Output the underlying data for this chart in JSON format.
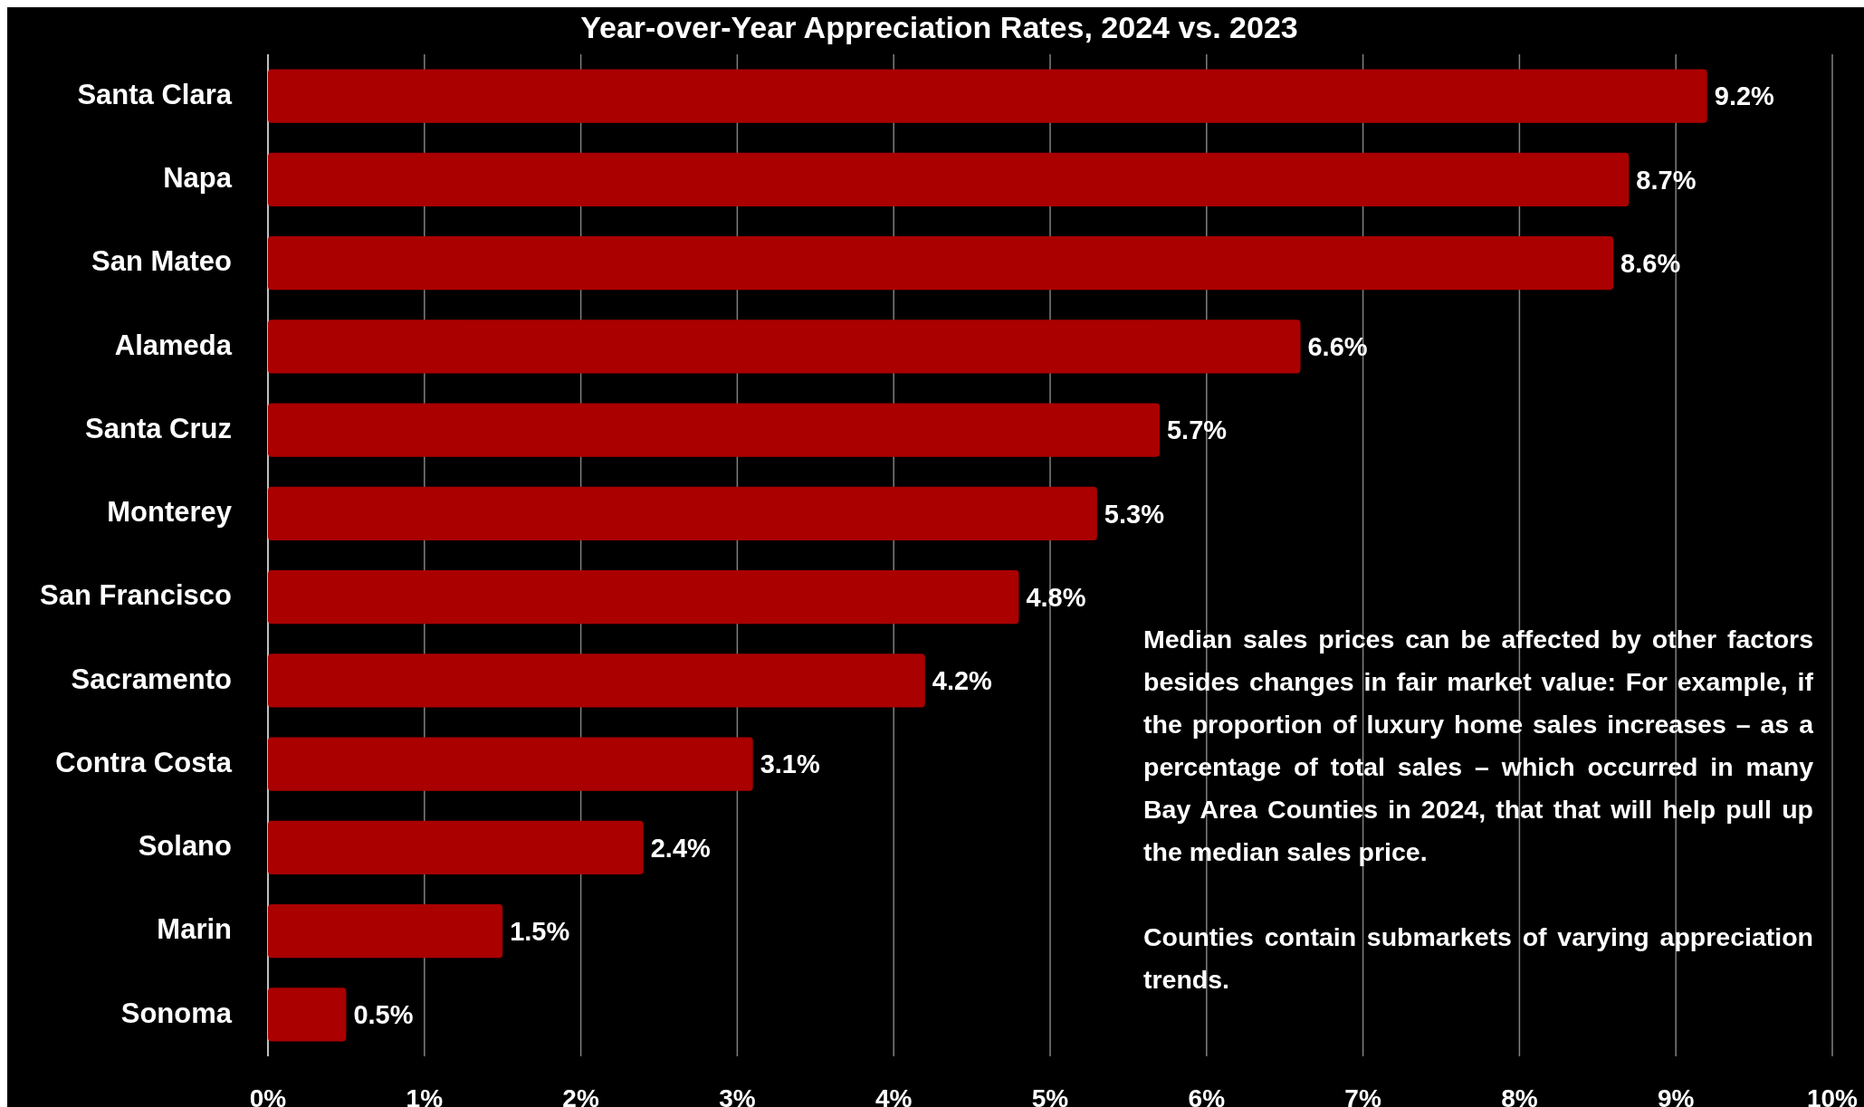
{
  "chart_data": {
    "type": "bar",
    "orientation": "horizontal",
    "title": "Year-over-Year Appreciation Rates, 2024 vs. 2023",
    "categories": [
      "Santa Clara",
      "Napa",
      "San Mateo",
      "Alameda",
      "Santa Cruz",
      "Monterey",
      "San Francisco",
      "Sacramento",
      "Contra Costa",
      "Solano",
      "Marin",
      "Sonoma"
    ],
    "values": [
      9.2,
      8.7,
      8.6,
      6.6,
      5.7,
      5.3,
      4.8,
      4.2,
      3.1,
      2.4,
      1.5,
      0.5
    ],
    "value_labels": [
      "9.2%",
      "8.7%",
      "8.6%",
      "6.6%",
      "5.7%",
      "5.3%",
      "4.8%",
      "4.2%",
      "3.1%",
      "2.4%",
      "1.5%",
      "0.5%"
    ],
    "color": "#aa0000",
    "xlim": [
      0,
      10
    ],
    "xticks": [
      {
        "value": 0,
        "label": "0%"
      },
      {
        "value": 1,
        "label": "1%"
      },
      {
        "value": 2,
        "label": "2%"
      },
      {
        "value": 3,
        "label": "3%"
      },
      {
        "value": 4,
        "label": "4%"
      },
      {
        "value": 5,
        "label": "5%"
      },
      {
        "value": 6,
        "label": "6%"
      },
      {
        "value": 7,
        "label": "7%"
      },
      {
        "value": 8,
        "label": "8%"
      },
      {
        "value": 9,
        "label": "9%"
      },
      {
        "value": 10,
        "label": "10%"
      }
    ],
    "grid": "x",
    "annotations": [
      "Median sales prices can be affected by other factors besides changes in fair market value: For example, if the proportion of luxury home sales increases – as a percentage of total sales – which occurred in many Bay Area Counties in 2024, that that will help pull up the median sales price.",
      "Counties contain submarkets of varying appreciation trends."
    ]
  }
}
